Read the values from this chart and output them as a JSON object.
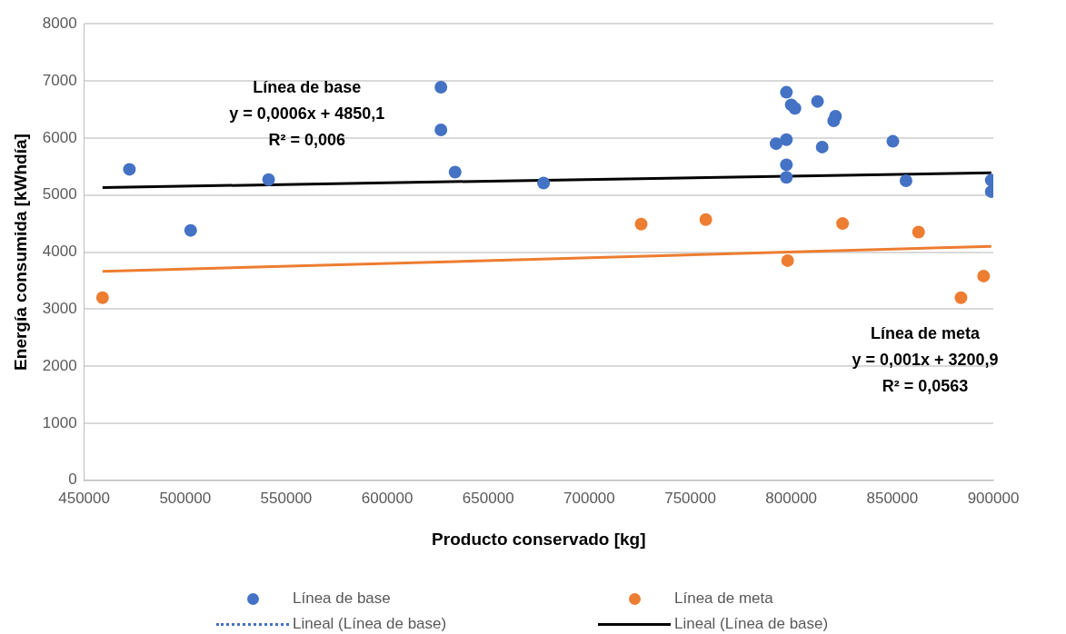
{
  "chart_data": {
    "type": "scatter",
    "xlabel": "Producto conservado [kg]",
    "ylabel": "Energía consumida [kWhdía]",
    "xlim": [
      450000,
      900000
    ],
    "xticks": [
      450000,
      500000,
      550000,
      600000,
      650000,
      700000,
      750000,
      800000,
      850000,
      900000
    ],
    "ylim": [
      0,
      8000
    ],
    "yticks": [
      0,
      1000,
      2000,
      3000,
      4000,
      5000,
      6000,
      7000,
      8000
    ],
    "grid": "y",
    "legend": "bottom",
    "marker": "circle",
    "series": [
      {
        "name": "Línea de base",
        "type": "scatter",
        "color": "#4472c4",
        "x": [
          472400,
          502700,
          541300,
          626600,
          626600,
          633600,
          677400,
          797600,
          800000,
          801800,
          813000,
          821900,
          821000,
          792500,
          797600,
          815300,
          850300,
          797600,
          797600,
          856800,
          899000,
          899000
        ],
        "values": [
          5450,
          4380,
          5270,
          6890,
          6140,
          5400,
          5210,
          6800,
          6580,
          6520,
          6640,
          6380,
          6300,
          5900,
          5970,
          5840,
          5940,
          5530,
          5310,
          5250,
          5260,
          5060
        ]
      },
      {
        "name": "Línea de meta",
        "type": "scatter",
        "color": "#ed7d31",
        "x": [
          459100,
          725700,
          757700,
          798200,
          825400,
          863000,
          884000,
          895200
        ],
        "values": [
          3200,
          4490,
          4570,
          3850,
          4500,
          4350,
          3200,
          3580
        ]
      },
      {
        "name": "Lineal (Línea de base)",
        "type": "line",
        "color": "#4472c4",
        "line_style": "dotted",
        "marker": "none"
      },
      {
        "name": "Lineal (Línea de base)",
        "type": "line",
        "color": "#000000",
        "line_style": "solid",
        "marker": "none",
        "x": [
          459100,
          899000
        ],
        "values": [
          5130,
          5390
        ]
      },
      {
        "type": "line",
        "color": "#ed7d31",
        "line_style": "solid",
        "marker": "none",
        "x": [
          459100,
          899000
        ],
        "values": [
          3660,
          4100
        ]
      }
    ],
    "annotations": [
      "Línea de base",
      "y = 0,0006x + 4850,1",
      "R² = 0,006",
      "Línea de meta",
      "y = 0,001x + 3200,9",
      "R² = 0,0563"
    ]
  }
}
